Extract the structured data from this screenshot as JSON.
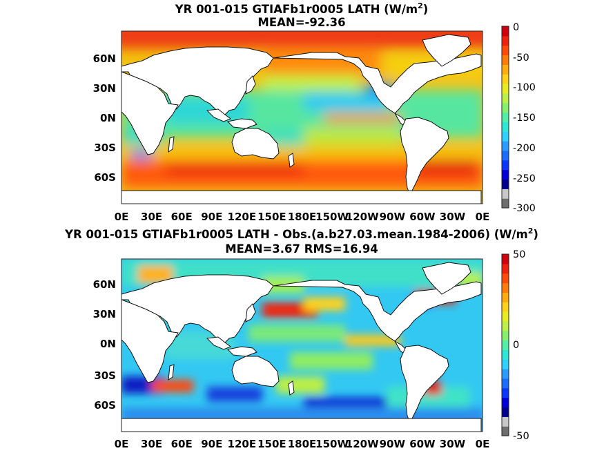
{
  "chart_data": [
    {
      "type": "heatmap",
      "title": "YR 001-015 GTIAFb1r0005  LATH (W/m",
      "title_sup": "2",
      "title_end": ")",
      "subtitle": "MEAN=-92.36",
      "x_tick_labels": [
        "0E",
        "30E",
        "60E",
        "90E",
        "120E",
        "150E",
        "180E",
        "150W",
        "120W",
        "90W",
        "60W",
        "30W",
        "0E"
      ],
      "y_tick_labels": [
        "60N",
        "30N",
        "0N",
        "30S",
        "60S"
      ],
      "y_tick_lats": [
        60,
        30,
        0,
        -30,
        -60
      ],
      "colorbar": {
        "min": -300,
        "max": 0,
        "tick_labels": [
          "0",
          "-50",
          "-100",
          "-150",
          "-200",
          "-250",
          "-300"
        ],
        "tick_values": [
          0,
          -50,
          -100,
          -150,
          -200,
          -250,
          -300
        ]
      }
    },
    {
      "type": "heatmap",
      "title": "YR 001-015 GTIAFb1r0005 LATH - Obs.(a.b27.03.mean.1984-2006) (W/m",
      "title_sup": "2",
      "title_end": ")",
      "subtitle": "MEAN=3.67 RMS=16.94",
      "x_tick_labels": [
        "0E",
        "30E",
        "60E",
        "90E",
        "120E",
        "150E",
        "180E",
        "150W",
        "120W",
        "90W",
        "60W",
        "30W",
        "0E"
      ],
      "y_tick_labels": [
        "60N",
        "30N",
        "0N",
        "30S",
        "60S"
      ],
      "y_tick_lats": [
        60,
        30,
        0,
        -30,
        -60
      ],
      "colorbar": {
        "min": -50,
        "max": 50,
        "tick_labels": [
          "50",
          "0",
          "-50"
        ],
        "tick_values": [
          50,
          0,
          -50
        ]
      }
    }
  ]
}
